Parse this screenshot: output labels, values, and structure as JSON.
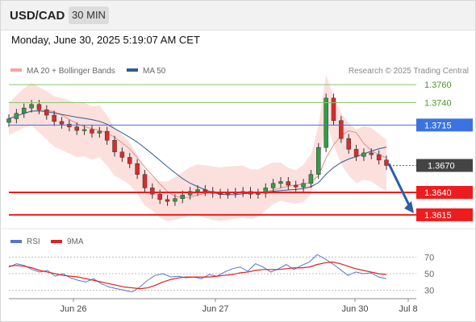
{
  "header": {
    "pair": "USD/CAD",
    "timeframe": "30 MIN"
  },
  "timestamp": "Monday, June 30, 2025 5:19:07 AM CET",
  "legend": {
    "main": [
      {
        "label": "MA 20 + Bollinger Bands",
        "color": "#f4a4a0"
      },
      {
        "label": "MA 50",
        "color": "#2e5b94"
      }
    ],
    "rsi": [
      {
        "label": "RSI",
        "color": "#5577cc"
      },
      {
        "label": "9MA",
        "color": "#e02020"
      }
    ]
  },
  "copyright": "Research © 2025 Trading Central",
  "chart_data": {
    "type": "line",
    "price_scale": {
      "min": 1.3605,
      "max": 1.377
    },
    "levels": [
      {
        "value": 1.376,
        "label": "1.3760",
        "kind": "target",
        "color": "#8cc56a"
      },
      {
        "value": 1.374,
        "label": "1.3740",
        "kind": "target",
        "color": "#8cc56a"
      },
      {
        "value": 1.3715,
        "label": "1.3715",
        "kind": "pivot",
        "color": "#3b73e0"
      },
      {
        "value": 1.367,
        "label": "1.3670",
        "kind": "last",
        "color": "#444444"
      },
      {
        "value": 1.364,
        "label": "1.3640",
        "kind": "support",
        "color": "#ee1c1c"
      },
      {
        "value": 1.3615,
        "label": "1.3615",
        "kind": "support",
        "color": "#ee1c1c"
      }
    ],
    "x_ticks": [
      "Jun 26",
      "Jun 27",
      "Jun 30",
      "Jul 8"
    ],
    "close_path": [
      1.3722,
      1.3728,
      1.3734,
      1.3738,
      1.3732,
      1.3726,
      1.3719,
      1.3716,
      1.3713,
      1.3709,
      1.371,
      1.3706,
      1.3708,
      1.3698,
      1.3685,
      1.3679,
      1.3672,
      1.366,
      1.3645,
      1.3638,
      1.3632,
      1.363,
      1.3633,
      1.3637,
      1.3641,
      1.3643,
      1.3641,
      1.3639,
      1.3638,
      1.3639,
      1.364,
      1.3641,
      1.3638,
      1.3639,
      1.3645,
      1.365,
      1.3652,
      1.3648,
      1.3646,
      1.365,
      1.366,
      1.369,
      1.3745,
      1.372,
      1.37,
      1.3688,
      1.368,
      1.3684,
      1.3682,
      1.3676,
      1.367
    ],
    "rsi_scale": {
      "min": 20,
      "max": 80,
      "ticks": [
        70,
        50,
        30
      ]
    },
    "rsi": [
      58,
      62,
      60,
      55,
      52,
      54,
      47,
      50,
      45,
      42,
      40,
      44,
      38,
      34,
      32,
      30,
      28,
      34,
      42,
      48,
      50,
      46,
      47,
      45,
      46,
      44,
      49,
      47,
      52,
      56,
      58,
      53,
      62,
      58,
      52,
      56,
      61,
      55,
      60,
      64,
      73,
      68,
      62,
      55,
      48,
      52,
      50,
      51,
      46,
      44
    ],
    "rsi_ma": [
      59,
      60,
      59,
      57,
      54,
      52,
      50,
      48,
      47,
      46,
      44,
      42,
      40,
      38,
      36,
      34,
      33,
      32,
      33,
      36,
      40,
      43,
      45,
      46,
      46,
      46,
      46,
      47,
      48,
      49,
      51,
      52,
      54,
      55,
      55,
      55,
      56,
      57,
      57,
      58,
      61,
      63,
      64,
      62,
      59,
      56,
      54,
      52,
      50,
      49
    ],
    "forecast": {
      "from": 1.367,
      "to": 1.3615,
      "direction": "down"
    }
  }
}
